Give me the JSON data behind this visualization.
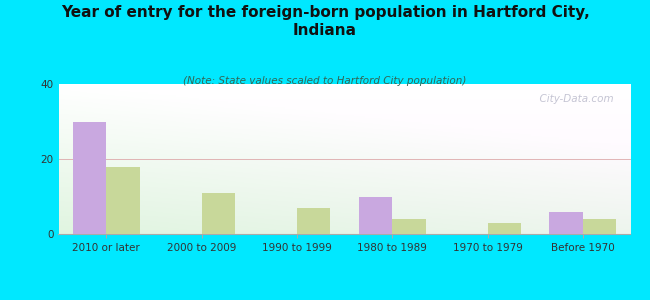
{
  "title": "Year of entry for the foreign-born population in Hartford City,\nIndiana",
  "subtitle": "(Note: State values scaled to Hartford City population)",
  "categories": [
    "2010 or later",
    "2000 to 2009",
    "1990 to 1999",
    "1980 to 1989",
    "1970 to 1979",
    "Before 1970"
  ],
  "hartford_values": [
    30,
    0,
    0,
    10,
    0,
    6
  ],
  "indiana_values": [
    18,
    11,
    7,
    4,
    3,
    4
  ],
  "hartford_color": "#c9a8e0",
  "indiana_color": "#c8d89a",
  "background_color": "#00e8ff",
  "ylim": [
    0,
    40
  ],
  "yticks": [
    0,
    20,
    40
  ],
  "bar_width": 0.35,
  "title_fontsize": 11,
  "subtitle_fontsize": 7.5,
  "tick_fontsize": 7.5,
  "legend_fontsize": 9,
  "watermark": "  City-Data.com"
}
